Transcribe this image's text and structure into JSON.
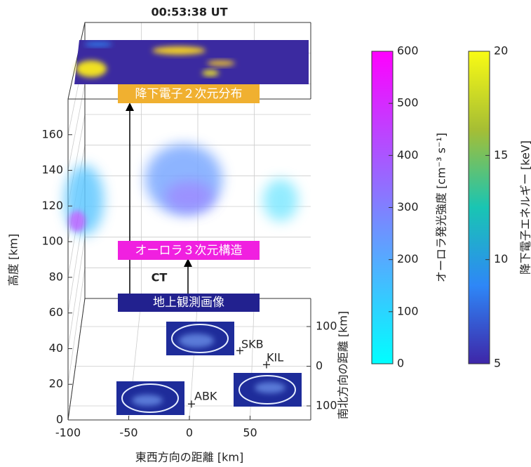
{
  "chart_data": {
    "type": "volume-3d",
    "title": "00:53:38 UT",
    "x_label": "東西方向の距離 [km]",
    "y_label": "高度 [km]",
    "z_label": "南北方向の距離 [km]",
    "xlim": [
      -100,
      100
    ],
    "xticks": [
      -100,
      -50,
      0,
      50
    ],
    "ylim": [
      0,
      180
    ],
    "yticks": [
      0,
      20,
      40,
      60,
      80,
      100,
      120,
      140,
      160
    ],
    "zlim": [
      -100,
      100
    ],
    "zticks": [
      {
        "value": -100,
        "label": "100"
      },
      0,
      100
    ],
    "grid": true,
    "annotations": [
      "降下電子２次元分布",
      "オーロラ３次元構造",
      "地上観測画像",
      "CT"
    ],
    "stations": [
      "ABK",
      "SKB",
      "KIL"
    ],
    "colorbars": [
      {
        "label": "オーロラ発光強度 [cm⁻³ s⁻¹]",
        "lim": [
          0,
          600
        ],
        "ticks": [
          0,
          100,
          200,
          300,
          400,
          500,
          600
        ],
        "colors": [
          "#00ffff",
          "#8080ff",
          "#ff00ff"
        ]
      },
      {
        "label": "降下電子エネルギー [keV]",
        "lim": [
          5,
          20
        ],
        "ticks": [
          5,
          10,
          15,
          20
        ],
        "colors": [
          "#3e26a8",
          "#2e87f7",
          "#19c5b3",
          "#a6be34",
          "#f9fb14"
        ]
      }
    ]
  }
}
